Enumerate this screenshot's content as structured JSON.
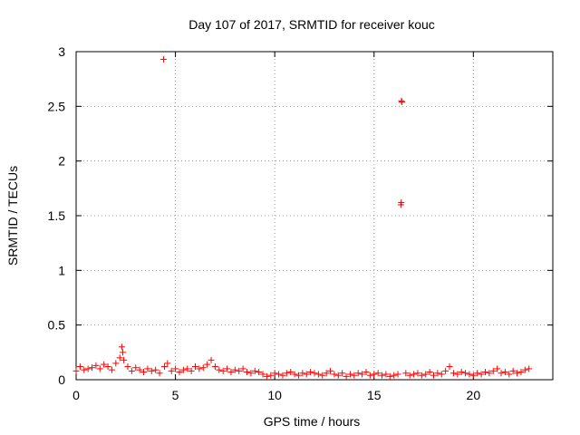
{
  "chart_data": {
    "type": "scatter",
    "title": "Day 107 of 2017, SRMTID for receiver kouc",
    "xlabel": "GPS time / hours",
    "ylabel": "SRMTID / TECUs",
    "xlim": [
      0,
      24
    ],
    "ylim": [
      0,
      3
    ],
    "x_ticks": [
      0,
      5,
      10,
      15,
      20
    ],
    "x_tick_labels": [
      "0",
      "5",
      "10",
      "15",
      "20"
    ],
    "y_ticks": [
      0,
      0.5,
      1,
      1.5,
      2,
      2.5,
      3
    ],
    "y_tick_labels": [
      "0",
      "0.5",
      "1",
      "1.5",
      "2",
      "2.5",
      "3"
    ],
    "grid": true,
    "marker": "+",
    "color": "#ff0000",
    "series": [
      {
        "name": "SRMTID",
        "x": [
          0.0,
          0.2,
          0.4,
          0.6,
          0.8,
          1.0,
          1.2,
          1.4,
          1.6,
          1.8,
          2.0,
          2.2,
          2.3,
          2.35,
          2.4,
          2.6,
          2.8,
          3.0,
          3.2,
          3.4,
          3.6,
          3.8,
          4.0,
          4.2,
          4.4,
          4.45,
          4.6,
          4.8,
          5.0,
          5.2,
          5.4,
          5.6,
          5.8,
          6.0,
          6.2,
          6.4,
          6.6,
          6.8,
          7.0,
          7.2,
          7.4,
          7.6,
          7.8,
          8.0,
          8.2,
          8.4,
          8.6,
          8.8,
          9.0,
          9.2,
          9.4,
          9.6,
          9.8,
          10.0,
          10.2,
          10.4,
          10.6,
          10.8,
          11.0,
          11.2,
          11.4,
          11.6,
          11.8,
          12.0,
          12.2,
          12.4,
          12.6,
          12.8,
          13.0,
          13.2,
          13.4,
          13.6,
          13.8,
          14.0,
          14.2,
          14.4,
          14.6,
          14.8,
          15.0,
          15.2,
          15.4,
          15.6,
          15.8,
          16.0,
          16.2,
          16.35,
          16.37,
          16.38,
          16.4,
          16.6,
          16.8,
          17.0,
          17.2,
          17.4,
          17.6,
          17.8,
          18.0,
          18.2,
          18.4,
          18.6,
          18.8,
          19.0,
          19.2,
          19.4,
          19.6,
          19.8,
          20.0,
          20.2,
          20.4,
          20.6,
          20.8,
          21.0,
          21.2,
          21.4,
          21.6,
          21.8,
          22.0,
          22.2,
          22.4,
          22.6,
          22.8
        ],
        "y": [
          0.08,
          0.12,
          0.09,
          0.1,
          0.11,
          0.13,
          0.1,
          0.14,
          0.12,
          0.09,
          0.15,
          0.2,
          0.3,
          0.25,
          0.18,
          0.12,
          0.08,
          0.11,
          0.09,
          0.07,
          0.1,
          0.08,
          0.09,
          0.06,
          2.93,
          0.12,
          0.15,
          0.08,
          0.1,
          0.07,
          0.09,
          0.1,
          0.08,
          0.12,
          0.1,
          0.11,
          0.14,
          0.18,
          0.12,
          0.09,
          0.08,
          0.1,
          0.07,
          0.09,
          0.08,
          0.1,
          0.07,
          0.06,
          0.08,
          0.07,
          0.05,
          0.03,
          0.04,
          0.06,
          0.05,
          0.04,
          0.06,
          0.07,
          0.05,
          0.04,
          0.06,
          0.05,
          0.07,
          0.06,
          0.05,
          0.04,
          0.06,
          0.08,
          0.05,
          0.04,
          0.06,
          0.03,
          0.05,
          0.04,
          0.06,
          0.05,
          0.07,
          0.04,
          0.05,
          0.06,
          0.04,
          0.05,
          0.03,
          0.04,
          0.05,
          1.6,
          1.62,
          2.55,
          2.54,
          0.06,
          0.04,
          0.05,
          0.06,
          0.04,
          0.05,
          0.07,
          0.04,
          0.06,
          0.05,
          0.08,
          0.12,
          0.06,
          0.05,
          0.07,
          0.06,
          0.05,
          0.04,
          0.06,
          0.05,
          0.07,
          0.06,
          0.08,
          0.1,
          0.06,
          0.07,
          0.05,
          0.08,
          0.06,
          0.07,
          0.09,
          0.1
        ]
      }
    ]
  }
}
